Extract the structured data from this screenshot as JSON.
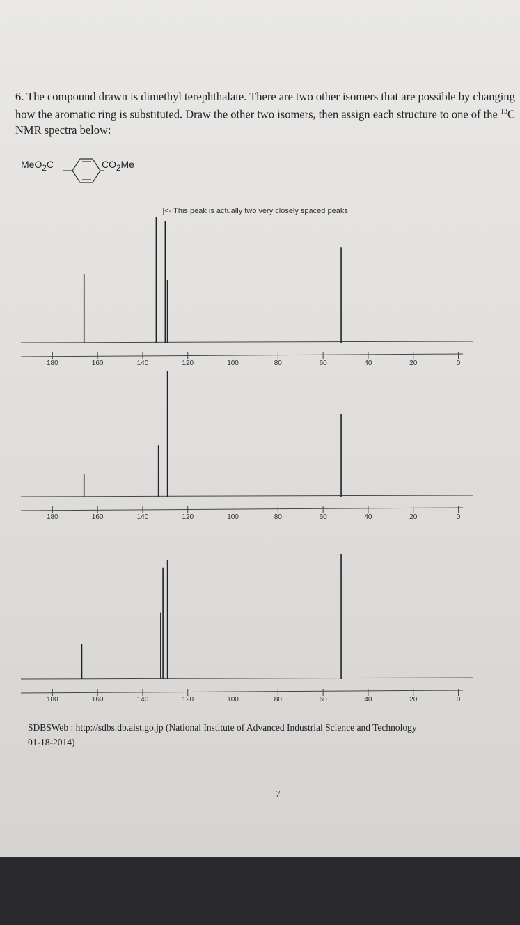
{
  "question": [
    "6. The compound drawn is dimethyl terephthalate.  There are two other isomers that are possible by changing how the aromatic ring is substituted.  Draw the other two isomers, then assign each structure to one of the ",
    "13",
    "C NMR spectra below:"
  ],
  "structure": {
    "left": [
      "MeO",
      "2",
      "C"
    ],
    "right": [
      "CO",
      "2",
      "Me"
    ]
  },
  "chart_data": [
    {
      "type": "stem",
      "annotation": "|<- This peak is actually two very closely spaced peaks",
      "x": [
        166,
        134,
        130,
        129,
        52
      ],
      "values": [
        55,
        100,
        97,
        50,
        76
      ],
      "xlim": [
        194,
        -2
      ],
      "ylim": [
        0,
        100
      ],
      "xticks": [
        180,
        160,
        140,
        120,
        100,
        80,
        60,
        40,
        20,
        0
      ],
      "color": "#222222"
    },
    {
      "type": "stem",
      "x": [
        166,
        133,
        129,
        52
      ],
      "values": [
        18,
        41,
        100,
        66
      ],
      "xlim": [
        194,
        -2
      ],
      "ylim": [
        0,
        100
      ],
      "xticks": [
        180,
        160,
        140,
        120,
        100,
        80,
        60,
        40,
        20,
        0
      ],
      "color": "#222222"
    },
    {
      "type": "stem",
      "x": [
        167,
        132,
        131,
        129,
        52
      ],
      "values": [
        28,
        53,
        89,
        95,
        100
      ],
      "xlim": [
        194,
        -2
      ],
      "ylim": [
        0,
        100
      ],
      "xticks": [
        180,
        160,
        140,
        120,
        100,
        80,
        60,
        40,
        20,
        0
      ],
      "color": "#222222"
    }
  ],
  "footer": {
    "source": "SDBSWeb  :  http://sdbs.db.aist.go.jp  (National  Institute  of  Advanced  Industrial  Science  and  Technology",
    "date": "01-18-2014)",
    "page_number": "7"
  }
}
